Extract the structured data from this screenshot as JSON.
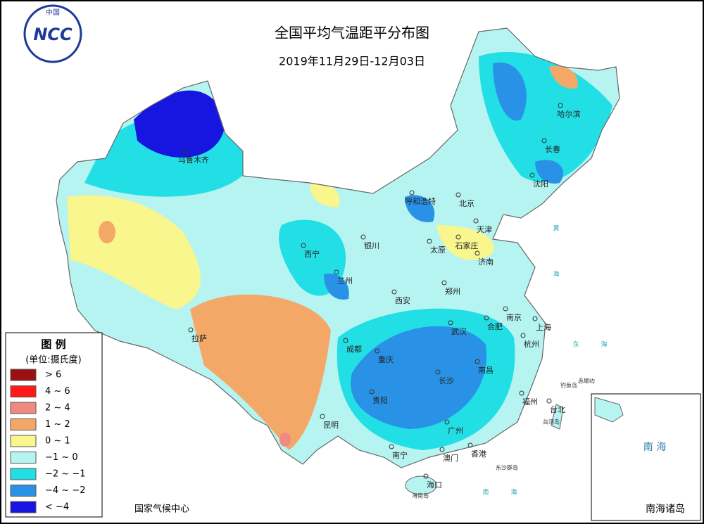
{
  "logo": {
    "top": "中国",
    "name": "NCC"
  },
  "header": {
    "title": "全国平均气温距平分布图",
    "date": "2019年11月29日-12月03日"
  },
  "legend": {
    "title": "图 例",
    "unit": "(单位:摄氏度)",
    "items": [
      {
        "label": "> 6",
        "color": "#9b1111"
      },
      {
        "label": "4 ~ 6",
        "color": "#ff1a1a"
      },
      {
        "label": "2 ~ 4",
        "color": "#f08a80"
      },
      {
        "label": "1 ~ 2",
        "color": "#f4a868"
      },
      {
        "label": "0 ~ 1",
        "color": "#f8f68c"
      },
      {
        "label": "−1 ~ 0",
        "color": "#b6f4f2"
      },
      {
        "label": "−2 ~ −1",
        "color": "#22dfe6"
      },
      {
        "label": "−4 ~ −2",
        "color": "#2a92e6"
      },
      {
        "label": "< −4",
        "color": "#1616e0"
      }
    ]
  },
  "cities": [
    "乌鲁木齐",
    "拉萨",
    "西宁",
    "兰州",
    "银川",
    "呼和浩特",
    "北京",
    "天津",
    "石家庄",
    "太原",
    "济南",
    "郑州",
    "西安",
    "成都",
    "重庆",
    "武汉",
    "合肥",
    "南京",
    "上海",
    "杭州",
    "长沙",
    "南昌",
    "贵阳",
    "昆明",
    "福州",
    "台北",
    "广州",
    "香港",
    "澳门",
    "南宁",
    "海口",
    "哈尔滨",
    "长春",
    "沈阳"
  ],
  "places": [
    "钓鱼岛",
    "赤尾屿",
    "台湾岛",
    "东沙群岛",
    "海南岛"
  ],
  "seas": [
    "黄",
    "海",
    "东",
    "海",
    "南",
    "海"
  ],
  "inset": {
    "sea": "南 海",
    "title": "南海诸岛"
  },
  "footer": "国家气候中心"
}
